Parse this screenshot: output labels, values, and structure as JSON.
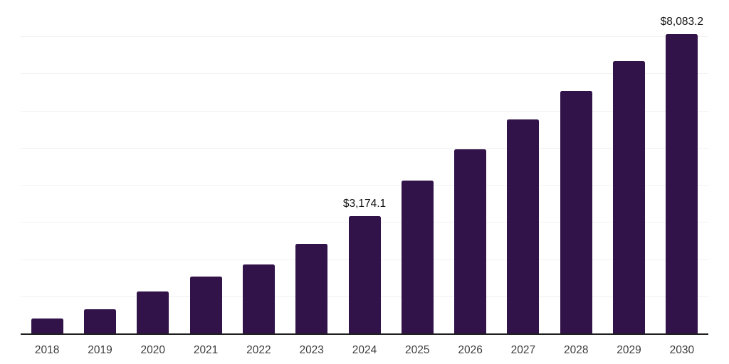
{
  "chart_data": {
    "type": "bar",
    "categories": [
      "2018",
      "2019",
      "2020",
      "2021",
      "2022",
      "2023",
      "2024",
      "2025",
      "2026",
      "2027",
      "2028",
      "2029",
      "2030"
    ],
    "values": [
      425,
      665,
      1145,
      1560,
      1880,
      2435,
      3174.1,
      4145,
      4970,
      5785,
      6555,
      7350,
      8083.2
    ],
    "annotations": [
      {
        "index": 6,
        "text": "$3,174.1"
      },
      {
        "index": 12,
        "text": "$8,083.2"
      }
    ],
    "ylim": [
      0,
      9000
    ],
    "grid_interval": 1000,
    "grid": "horizontal",
    "legend": "none",
    "colors": {
      "bar": "#311249",
      "gridline": "#f1f1f1",
      "axis_line": "#1f1f1f",
      "value_label": "#111111",
      "tick_label": "#3d3d3d",
      "background": "#ffffff"
    }
  }
}
